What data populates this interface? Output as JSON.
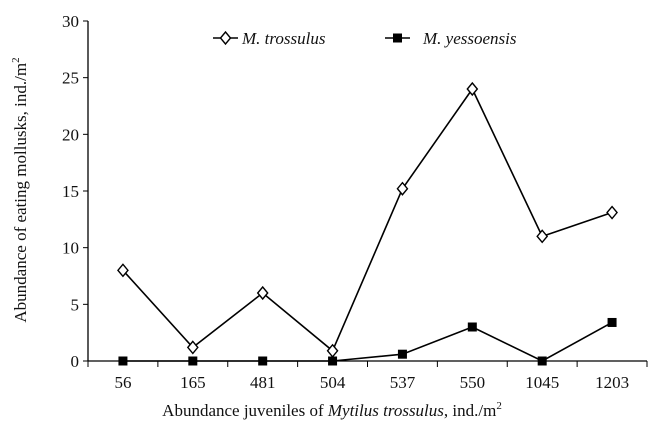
{
  "chart_data": {
    "type": "line",
    "title": "",
    "xlabel_parts": {
      "prefix": "Abundance juveniles of ",
      "italic": "Mytilus trossulus",
      "suffix": ", ind./m",
      "sup": "2"
    },
    "ylabel_parts": {
      "text": "Abundance of eating mollusks, ind./m",
      "sup": "2"
    },
    "categories": [
      "56",
      "165",
      "481",
      "504",
      "537",
      "550",
      "1045",
      "1203"
    ],
    "ylim": [
      0,
      30
    ],
    "yticks": [
      0,
      5,
      10,
      15,
      20,
      25,
      30
    ],
    "grid": false,
    "legend_position": "top-center",
    "series": [
      {
        "name": "M. trossulus",
        "marker": "open-diamond",
        "color": "#000000",
        "values": [
          8.0,
          1.2,
          6.0,
          0.9,
          15.2,
          24.0,
          11.0,
          13.1
        ]
      },
      {
        "name": "M. yessoensis",
        "marker": "filled-square",
        "color": "#000000",
        "values": [
          0,
          0,
          0,
          0,
          0.6,
          3.0,
          0,
          3.4
        ]
      }
    ]
  }
}
